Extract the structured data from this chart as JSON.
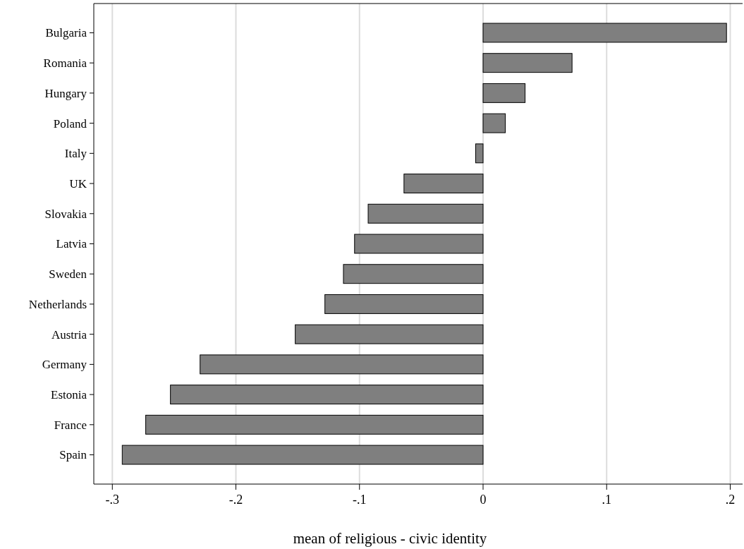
{
  "chart_data": {
    "type": "bar",
    "orientation": "horizontal",
    "xlabel": "mean of religious - civic identity",
    "categories": [
      "Bulgaria",
      "Romania",
      "Hungary",
      "Poland",
      "Italy",
      "UK",
      "Slovakia",
      "Latvia",
      "Sweden",
      "Netherlands",
      "Austria",
      "Germany",
      "Estonia",
      "France",
      "Spain"
    ],
    "values": [
      0.197,
      0.072,
      0.034,
      0.018,
      -0.006,
      -0.064,
      -0.093,
      -0.104,
      -0.113,
      -0.128,
      -0.152,
      -0.229,
      -0.253,
      -0.273,
      -0.292
    ],
    "color": "#7f7f7f",
    "xlim": [
      -0.315,
      0.21
    ],
    "xticks": [
      {
        "value": -0.3,
        "label": "-.3"
      },
      {
        "value": -0.2,
        "label": "-.2"
      },
      {
        "value": -0.1,
        "label": "-.1"
      },
      0,
      {
        "value": 0.1,
        "label": ".1"
      },
      {
        "value": 0.2,
        "label": ".2"
      }
    ],
    "grid": "x"
  }
}
